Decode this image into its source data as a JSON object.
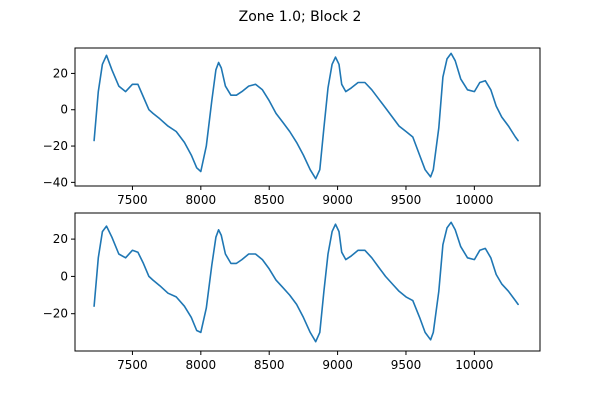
{
  "figure": {
    "suptitle": "Zone 1.0; Block 2"
  },
  "chart_data": [
    {
      "type": "line",
      "title": "",
      "xlabel": "",
      "ylabel": "",
      "xlim": [
        7080,
        10480
      ],
      "ylim": [
        -42,
        34
      ],
      "xticks": [
        7500,
        8000,
        8500,
        9000,
        9500,
        10000
      ],
      "xtick_labels": [
        "7500",
        "8000",
        "8500",
        "9000",
        "9500",
        "10000"
      ],
      "yticks": [
        -40,
        -20,
        0,
        20
      ],
      "ytick_labels": [
        "−40",
        "−20",
        "0",
        "20"
      ],
      "grid": false,
      "series": [
        {
          "color": "#1f77b4",
          "x": [
            7220,
            7250,
            7280,
            7310,
            7350,
            7400,
            7450,
            7500,
            7540,
            7580,
            7620,
            7650,
            7700,
            7760,
            7820,
            7880,
            7930,
            7970,
            8000,
            8040,
            8080,
            8110,
            8130,
            8150,
            8180,
            8220,
            8260,
            8300,
            8350,
            8400,
            8450,
            8500,
            8550,
            8600,
            8650,
            8700,
            8750,
            8800,
            8840,
            8870,
            8900,
            8930,
            8960,
            8985,
            9010,
            9030,
            9060,
            9100,
            9150,
            9200,
            9250,
            9300,
            9350,
            9400,
            9450,
            9500,
            9550,
            9600,
            9640,
            9680,
            9700,
            9740,
            9770,
            9800,
            9830,
            9860,
            9900,
            9950,
            10000,
            10040,
            10080,
            10120,
            10160,
            10200,
            10250,
            10300,
            10320
          ],
          "values": [
            -17,
            10,
            25,
            30,
            22,
            13,
            10,
            14,
            14,
            7,
            0,
            -2,
            -5,
            -9,
            -12,
            -18,
            -25,
            -32,
            -34,
            -20,
            5,
            22,
            26,
            23,
            13,
            8,
            8,
            10,
            13,
            14,
            11,
            5,
            -2,
            -7,
            -12,
            -18,
            -25,
            -33,
            -38,
            -33,
            -10,
            12,
            25,
            29,
            25,
            14,
            10,
            12,
            15,
            15,
            11,
            6,
            1,
            -4,
            -9,
            -12,
            -15,
            -25,
            -33,
            -37,
            -33,
            -10,
            18,
            28,
            31,
            27,
            17,
            11,
            10,
            15,
            16,
            11,
            2,
            -4,
            -9,
            -15,
            -17
          ]
        }
      ]
    },
    {
      "type": "line",
      "title": "",
      "xlabel": "",
      "ylabel": "",
      "xlim": [
        7080,
        10480
      ],
      "ylim": [
        -40,
        34
      ],
      "xticks": [
        7500,
        8000,
        8500,
        9000,
        9500,
        10000
      ],
      "xtick_labels": [
        "7500",
        "8000",
        "8500",
        "9000",
        "9500",
        "10000"
      ],
      "yticks": [
        -20,
        0,
        20
      ],
      "ytick_labels": [
        "−20",
        "0",
        "20"
      ],
      "grid": false,
      "series": [
        {
          "color": "#1f77b4",
          "x": [
            7220,
            7250,
            7280,
            7310,
            7350,
            7400,
            7450,
            7500,
            7540,
            7580,
            7620,
            7650,
            7700,
            7760,
            7820,
            7880,
            7930,
            7970,
            8000,
            8040,
            8080,
            8110,
            8130,
            8150,
            8180,
            8220,
            8260,
            8300,
            8350,
            8400,
            8450,
            8500,
            8550,
            8600,
            8650,
            8700,
            8750,
            8800,
            8840,
            8870,
            8900,
            8930,
            8960,
            8985,
            9010,
            9030,
            9060,
            9100,
            9150,
            9200,
            9250,
            9300,
            9350,
            9400,
            9450,
            9500,
            9550,
            9600,
            9640,
            9680,
            9700,
            9740,
            9770,
            9800,
            9830,
            9860,
            9900,
            9950,
            10000,
            10040,
            10080,
            10120,
            10160,
            10200,
            10250,
            10300,
            10320
          ],
          "values": [
            -16,
            10,
            24,
            27,
            21,
            12,
            10,
            14,
            13,
            7,
            0,
            -2,
            -5,
            -9,
            -11,
            -16,
            -22,
            -29,
            -30,
            -17,
            6,
            21,
            25,
            22,
            12,
            7,
            7,
            9,
            12,
            12,
            9,
            4,
            -2,
            -6,
            -10,
            -15,
            -22,
            -30,
            -35,
            -30,
            -8,
            12,
            24,
            28,
            24,
            13,
            9,
            11,
            14,
            14,
            10,
            5,
            0,
            -4,
            -8,
            -11,
            -13,
            -22,
            -30,
            -34,
            -30,
            -8,
            17,
            26,
            29,
            25,
            16,
            10,
            9,
            14,
            15,
            10,
            1,
            -4,
            -8,
            -13,
            -15
          ]
        }
      ]
    }
  ]
}
